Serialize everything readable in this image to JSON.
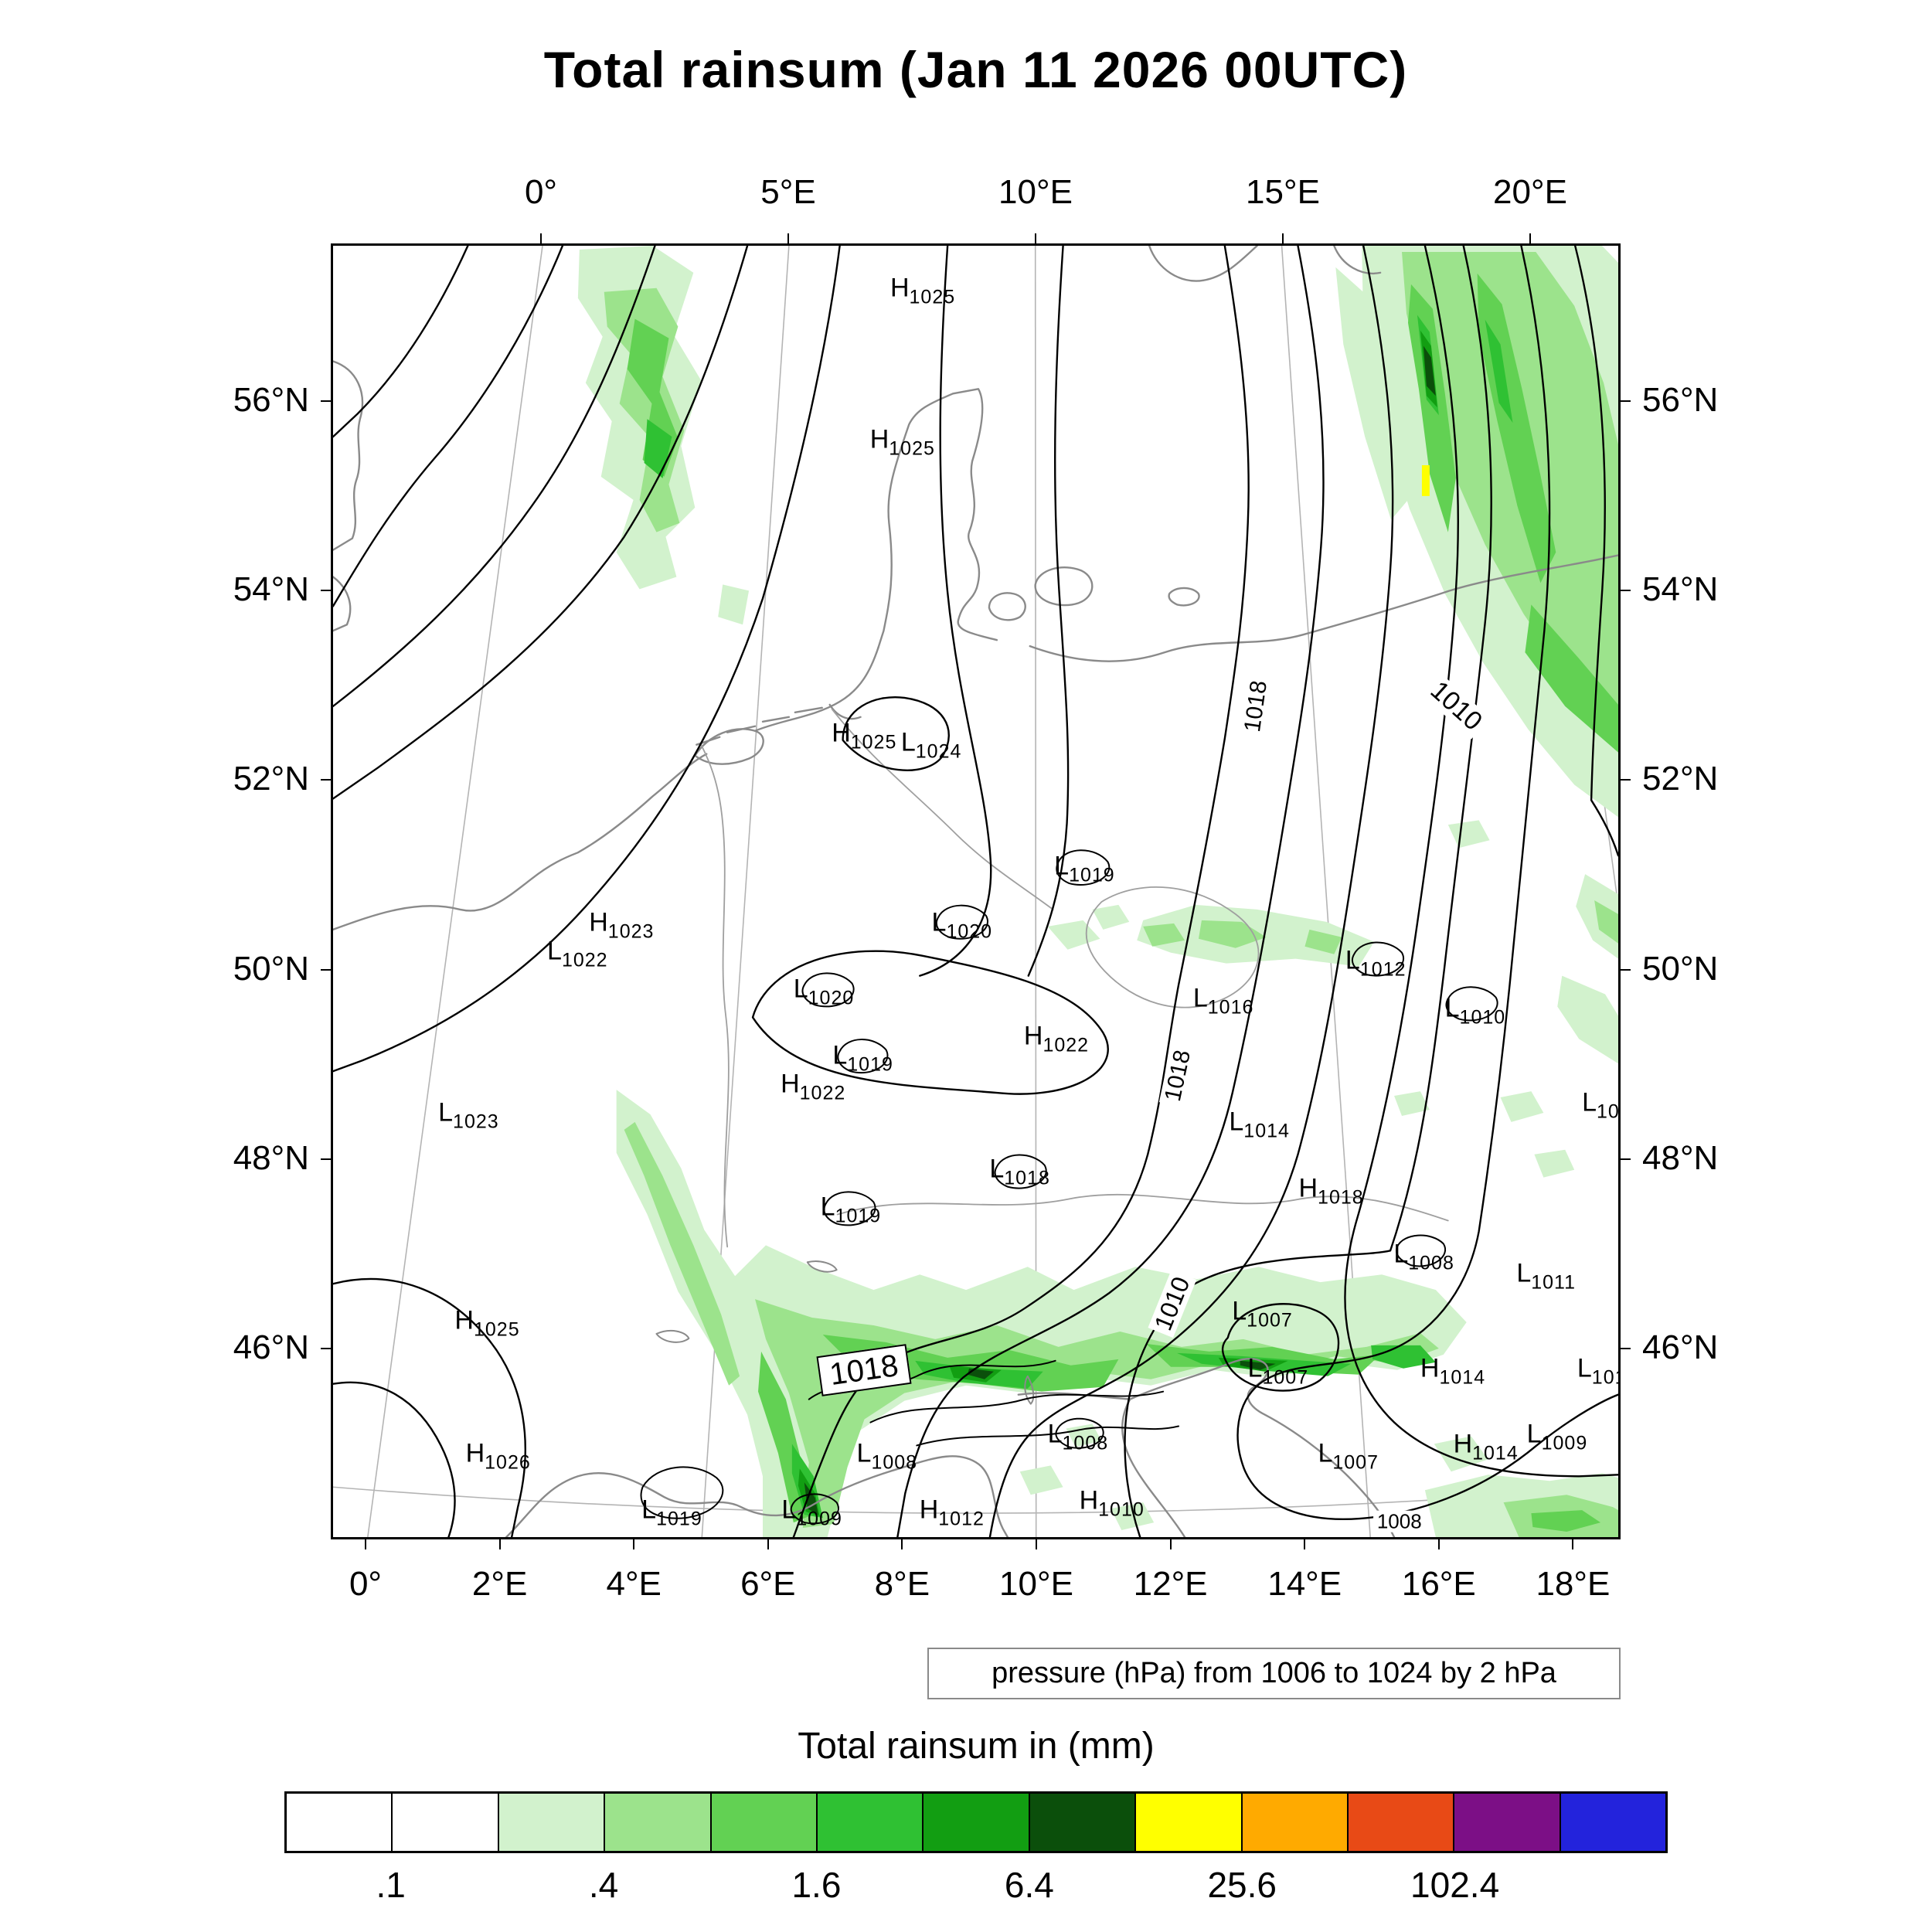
{
  "title": "Total rainsum (Jan 11 2026 00UTC)",
  "caption": "pressure (hPa) from 1006 to 1024 by 2 hPa",
  "axes": {
    "top": [
      {
        "label": "0°",
        "lon": 0
      },
      {
        "label": "5°E",
        "lon": 5
      },
      {
        "label": "10°E",
        "lon": 10
      },
      {
        "label": "15°E",
        "lon": 15
      },
      {
        "label": "20°E",
        "lon": 20
      }
    ],
    "bottom": [
      {
        "label": "0°",
        "lon": 0
      },
      {
        "label": "2°E",
        "lon": 2
      },
      {
        "label": "4°E",
        "lon": 4
      },
      {
        "label": "6°E",
        "lon": 6
      },
      {
        "label": "8°E",
        "lon": 8
      },
      {
        "label": "10°E",
        "lon": 10
      },
      {
        "label": "12°E",
        "lon": 12
      },
      {
        "label": "14°E",
        "lon": 14
      },
      {
        "label": "16°E",
        "lon": 16
      },
      {
        "label": "18°E",
        "lon": 18
      }
    ],
    "left": [
      {
        "label": "56°N",
        "lat": 56
      },
      {
        "label": "54°N",
        "lat": 54
      },
      {
        "label": "52°N",
        "lat": 52
      },
      {
        "label": "50°N",
        "lat": 50
      },
      {
        "label": "48°N",
        "lat": 48
      },
      {
        "label": "46°N",
        "lat": 46
      }
    ],
    "right": [
      {
        "label": "56°N",
        "lat": 56
      },
      {
        "label": "54°N",
        "lat": 54
      },
      {
        "label": "52°N",
        "lat": 52
      },
      {
        "label": "50°N",
        "lat": 50
      },
      {
        "label": "48°N",
        "lat": 48
      },
      {
        "label": "46°N",
        "lat": 46
      }
    ]
  },
  "map": {
    "pressure_centers": [
      {
        "letter": "H",
        "value": "1025",
        "lon": 7.7,
        "lat": 57.2
      },
      {
        "letter": "H",
        "value": "1025",
        "lon": 7.4,
        "lat": 55.6
      },
      {
        "letter": "H",
        "value": "1025",
        "lon": 6.9,
        "lat": 52.5
      },
      {
        "letter": "L",
        "value": "1024",
        "lon": 8.1,
        "lat": 52.4
      },
      {
        "letter": "L",
        "value": "1019",
        "lon": 10.8,
        "lat": 51.1
      },
      {
        "letter": "L",
        "value": "1020",
        "lon": 8.7,
        "lat": 50.5
      },
      {
        "letter": "H",
        "value": "1023",
        "lon": 2.9,
        "lat": 50.5
      },
      {
        "letter": "L",
        "value": "1022",
        "lon": 2.2,
        "lat": 50.2
      },
      {
        "letter": "L",
        "value": "1020",
        "lon": 6.4,
        "lat": 49.8
      },
      {
        "letter": "L",
        "value": "1016",
        "lon": 13.1,
        "lat": 49.7
      },
      {
        "letter": "L",
        "value": "1012",
        "lon": 15.7,
        "lat": 50.1
      },
      {
        "letter": "L",
        "value": "1010",
        "lon": 17.3,
        "lat": 49.6
      },
      {
        "letter": "H",
        "value": "1022",
        "lon": 10.3,
        "lat": 49.3
      },
      {
        "letter": "L",
        "value": "1019",
        "lon": 7.1,
        "lat": 49.1
      },
      {
        "letter": "H",
        "value": "1022",
        "lon": 6.3,
        "lat": 48.8
      },
      {
        "letter": "L",
        "value": "1023",
        "lon": 0.7,
        "lat": 48.5
      },
      {
        "letter": "L",
        "value": "1014",
        "lon": 13.6,
        "lat": 48.4
      },
      {
        "letter": "L",
        "value": "1018",
        "lon": 9.7,
        "lat": 47.9
      },
      {
        "letter": "H",
        "value": "1018",
        "lon": 14.7,
        "lat": 47.7
      },
      {
        "letter": "L",
        "value": "1019",
        "lon": 7.0,
        "lat": 47.5
      },
      {
        "letter": "L",
        "value": "1008",
        "lon": 16.1,
        "lat": 47.0
      },
      {
        "letter": "L",
        "value": "1011",
        "lon": 18.0,
        "lat": 46.8
      },
      {
        "letter": "L",
        "value": "1007",
        "lon": 13.5,
        "lat": 46.4
      },
      {
        "letter": "H",
        "value": "1025",
        "lon": 1.4,
        "lat": 46.3
      },
      {
        "letter": "L",
        "value": "1007",
        "lon": 13.7,
        "lat": 45.8
      },
      {
        "letter": "H",
        "value": "1014",
        "lon": 16.4,
        "lat": 45.8
      },
      {
        "letter": "L",
        "value": "101",
        "lon": 18.7,
        "lat": 45.8
      },
      {
        "letter": "L",
        "value": "10",
        "lon": 19.2,
        "lat": 48.6
      },
      {
        "letter": "H",
        "value": "1026",
        "lon": 1.8,
        "lat": 44.9
      },
      {
        "letter": "L",
        "value": "1019",
        "lon": 4.5,
        "lat": 44.3
      },
      {
        "letter": "L",
        "value": "1008",
        "lon": 7.7,
        "lat": 44.9
      },
      {
        "letter": "L",
        "value": "1009",
        "lon": 6.6,
        "lat": 44.3
      },
      {
        "letter": "H",
        "value": "1012",
        "lon": 8.7,
        "lat": 44.3
      },
      {
        "letter": "L",
        "value": "1008",
        "lon": 10.6,
        "lat": 45.1
      },
      {
        "letter": "H",
        "value": "1010",
        "lon": 11.1,
        "lat": 44.4
      },
      {
        "letter": "L",
        "value": "1007",
        "lon": 14.7,
        "lat": 44.9
      },
      {
        "letter": "H",
        "value": "1014",
        "lon": 16.8,
        "lat": 45.0
      },
      {
        "letter": "L",
        "value": "1009",
        "lon": 17.9,
        "lat": 45.1
      }
    ],
    "contour_labels": [
      {
        "text": "1018",
        "lon": 13.9,
        "lat": 52.8,
        "rot": -82,
        "size": 30,
        "boxed": false
      },
      {
        "text": "1010",
        "lon": 17.5,
        "lat": 52.8,
        "rot": 42,
        "size": 34,
        "boxed": false
      },
      {
        "text": "1018",
        "lon": 12.3,
        "lat": 48.9,
        "rot": -78,
        "size": 30,
        "boxed": false
      },
      {
        "text": "1010",
        "lon": 12.1,
        "lat": 46.5,
        "rot": -68,
        "size": 32,
        "boxed": false
      },
      {
        "text": "1018",
        "lon": 7.3,
        "lat": 45.8,
        "rot": -8,
        "size": 40,
        "boxed": true
      },
      {
        "text": "1008",
        "lon": 15.4,
        "lat": 44.2,
        "rot": 0,
        "size": 26,
        "boxed": false
      }
    ]
  },
  "legend": {
    "title": "Total rainsum in (mm)",
    "colors": [
      "#ffffff",
      "#ffffff",
      "#d2f2cd",
      "#9ce38c",
      "#62d153",
      "#2fc133",
      "#129e12",
      "#0b4f0b",
      "#ffff00",
      "#ffaa00",
      "#e84a16",
      "#7c0f86",
      "#2323dc"
    ],
    "tick_labels": [
      ".1",
      ".4",
      "1.6",
      "6.4",
      "25.6",
      "102.4"
    ],
    "tick_boundaries": [
      1,
      3,
      5,
      7,
      9,
      11
    ],
    "scale_values": [
      0.1,
      0.2,
      0.4,
      0.8,
      1.6,
      3.2,
      6.4,
      12.8,
      25.6,
      51.2,
      102.4,
      204.8
    ]
  }
}
